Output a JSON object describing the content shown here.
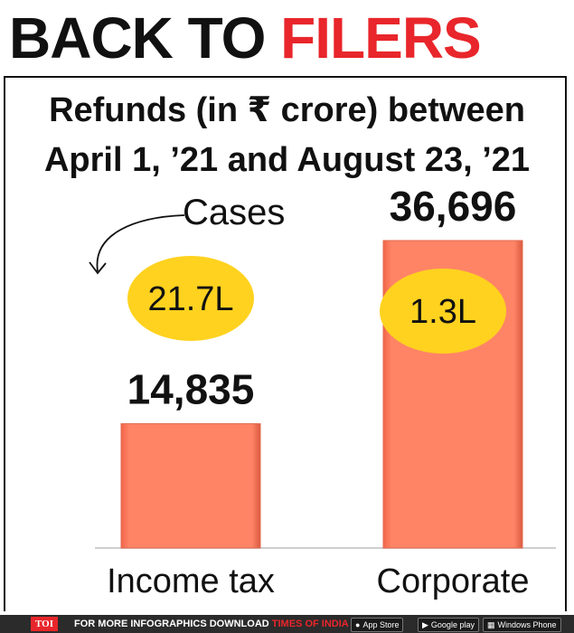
{
  "headline": {
    "part1": "BACK TO ",
    "part2": "FILERS"
  },
  "subtitle": {
    "line1": "Refunds (in ₹ crore) between",
    "line2": "April 1, ’21 and August 23, ’21"
  },
  "cases_label": "Cases",
  "chart_data": {
    "type": "bar",
    "title": "Refunds (in ₹ crore) between April 1, ’21 and August 23, ’21",
    "categories": [
      "Income tax",
      "Corporate"
    ],
    "values": [
      14835,
      36696
    ],
    "value_labels": [
      "14,835",
      "36,696"
    ],
    "cases": [
      "21.7L",
      "1.3L"
    ],
    "ylim": [
      0,
      36696
    ],
    "grid": false,
    "colors": {
      "bar": "#ff7f5e",
      "bubble": "#ffd21f",
      "headline_accent": "#e8262b"
    }
  },
  "footer": {
    "toi": "TOI",
    "msg_prefix": "FOR MORE  INFOGRAPHICS DOWNLOAD ",
    "msg_app": "TIMES OF INDIA  APP",
    "stores": [
      {
        "icon": "apple-icon",
        "label": "App Store"
      },
      {
        "icon": "play-icon",
        "label": "Google play"
      },
      {
        "icon": "windows-icon",
        "label": "Windows Phone"
      }
    ]
  }
}
